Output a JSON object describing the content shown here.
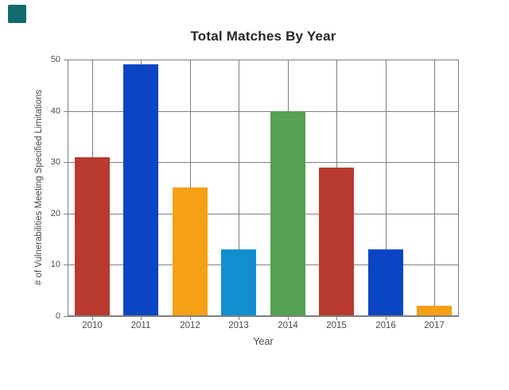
{
  "badge": {
    "color": "#116a6e"
  },
  "chart_data": {
    "type": "bar",
    "title": "Total Matches By Year",
    "categories": [
      "2010",
      "2011",
      "2012",
      "2013",
      "2014",
      "2015",
      "2016",
      "2017"
    ],
    "values": [
      31,
      49,
      25,
      13,
      40,
      29,
      13,
      2
    ],
    "bar_colors": [
      "#b93a2e",
      "#0b45c4",
      "#f6a015",
      "#118fd1",
      "#56a152",
      "#b93a2e",
      "#0b45c4",
      "#f6a015"
    ],
    "xlabel": "Year",
    "ylabel": "# of Vulnerabilities Meeting Specified Limitations",
    "ylim": [
      0,
      50
    ],
    "yticks": [
      0,
      10,
      20,
      30,
      40,
      50
    ],
    "grid": true,
    "legend_position": "none",
    "grid_color": "#7f7f7f",
    "axis_color": "#7f7f7f",
    "tick_text_color": "#4a4a4a",
    "title_color": "#262626"
  }
}
